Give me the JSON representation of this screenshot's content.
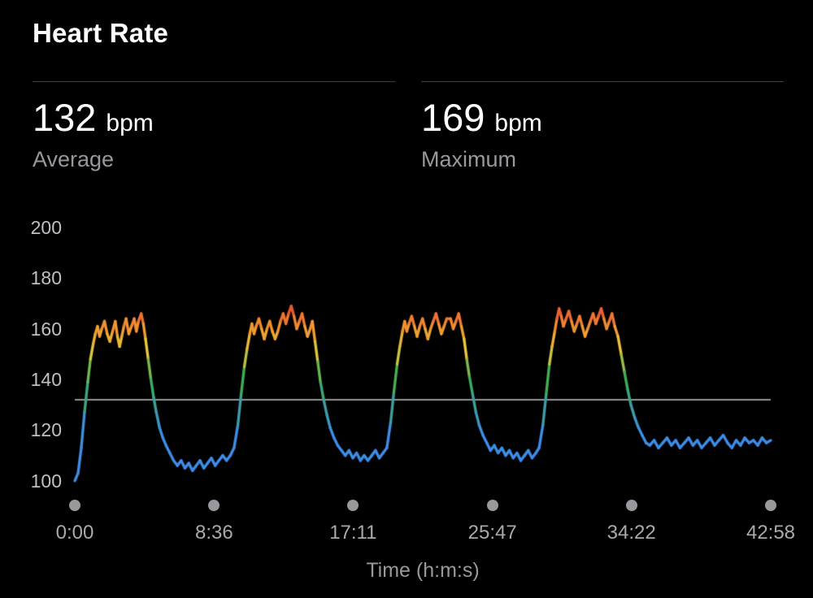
{
  "header": {
    "title": "Heart Rate"
  },
  "stats": [
    {
      "value": "132",
      "unit": "bpm",
      "label": "Average"
    },
    {
      "value": "169",
      "unit": "bpm",
      "label": "Maximum"
    }
  ],
  "colors": {
    "background": "#000000",
    "text_primary": "#ffffff",
    "text_secondary": "#98989d",
    "hairline": "#3f3f42",
    "average_line": "#c7c7cc",
    "tick_dot": "#98989d"
  },
  "chart_data": {
    "type": "line",
    "title": "Heart Rate",
    "xlabel": "Time (h:m:s)",
    "ylabel": "bpm",
    "ylim": [
      95,
      205
    ],
    "grid": false,
    "y_ticks": [
      200,
      180,
      160,
      140,
      120,
      100
    ],
    "x_ticks": [
      {
        "t": 0,
        "label": "0:00"
      },
      {
        "t": 516,
        "label": "8:36"
      },
      {
        "t": 1031,
        "label": "17:11"
      },
      {
        "t": 1547,
        "label": "25:47"
      },
      {
        "t": 2062,
        "label": "34:22"
      },
      {
        "t": 2578,
        "label": "42:58"
      }
    ],
    "duration_s": 2578,
    "average_bpm": 132,
    "max_bpm": 169,
    "color_stops": [
      [
        118,
        "#3e8de8"
      ],
      [
        140,
        "#3faf54"
      ],
      [
        152,
        "#e8c93e"
      ],
      [
        161,
        "#f2922e"
      ],
      [
        168,
        "#e94f35"
      ]
    ],
    "series": [
      {
        "name": "heart_rate_bpm",
        "points": [
          [
            0,
            100
          ],
          [
            12,
            103
          ],
          [
            24,
            113
          ],
          [
            36,
            127
          ],
          [
            48,
            139
          ],
          [
            58,
            148
          ],
          [
            68,
            154
          ],
          [
            76,
            158
          ],
          [
            84,
            161
          ],
          [
            92,
            157
          ],
          [
            100,
            160
          ],
          [
            110,
            163
          ],
          [
            120,
            158
          ],
          [
            130,
            155
          ],
          [
            140,
            159
          ],
          [
            150,
            163
          ],
          [
            158,
            157
          ],
          [
            166,
            153
          ],
          [
            174,
            157
          ],
          [
            182,
            161
          ],
          [
            190,
            164
          ],
          [
            200,
            158
          ],
          [
            210,
            161
          ],
          [
            220,
            164
          ],
          [
            228,
            159
          ],
          [
            236,
            163
          ],
          [
            246,
            166
          ],
          [
            254,
            162
          ],
          [
            262,
            156
          ],
          [
            272,
            148
          ],
          [
            282,
            140
          ],
          [
            292,
            133
          ],
          [
            302,
            127
          ],
          [
            314,
            121
          ],
          [
            326,
            117
          ],
          [
            338,
            114
          ],
          [
            352,
            111
          ],
          [
            366,
            108
          ],
          [
            380,
            106
          ],
          [
            394,
            108
          ],
          [
            408,
            105
          ],
          [
            422,
            107
          ],
          [
            436,
            104
          ],
          [
            450,
            106
          ],
          [
            464,
            108
          ],
          [
            478,
            105
          ],
          [
            492,
            107
          ],
          [
            506,
            109
          ],
          [
            520,
            106
          ],
          [
            534,
            108
          ],
          [
            548,
            110
          ],
          [
            562,
            108
          ],
          [
            576,
            110
          ],
          [
            590,
            113
          ],
          [
            604,
            122
          ],
          [
            616,
            134
          ],
          [
            628,
            145
          ],
          [
            638,
            152
          ],
          [
            648,
            158
          ],
          [
            656,
            162
          ],
          [
            664,
            158
          ],
          [
            672,
            161
          ],
          [
            682,
            164
          ],
          [
            692,
            160
          ],
          [
            702,
            156
          ],
          [
            712,
            160
          ],
          [
            722,
            163
          ],
          [
            732,
            159
          ],
          [
            742,
            156
          ],
          [
            752,
            159
          ],
          [
            762,
            163
          ],
          [
            772,
            166
          ],
          [
            782,
            162
          ],
          [
            792,
            166
          ],
          [
            802,
            169
          ],
          [
            812,
            165
          ],
          [
            822,
            160
          ],
          [
            832,
            163
          ],
          [
            842,
            166
          ],
          [
            852,
            161
          ],
          [
            862,
            157
          ],
          [
            872,
            160
          ],
          [
            880,
            163
          ],
          [
            890,
            155
          ],
          [
            900,
            147
          ],
          [
            910,
            139
          ],
          [
            922,
            132
          ],
          [
            934,
            126
          ],
          [
            946,
            121
          ],
          [
            960,
            117
          ],
          [
            974,
            114
          ],
          [
            988,
            112
          ],
          [
            1002,
            110
          ],
          [
            1016,
            112
          ],
          [
            1030,
            109
          ],
          [
            1044,
            111
          ],
          [
            1058,
            108
          ],
          [
            1072,
            110
          ],
          [
            1086,
            108
          ],
          [
            1100,
            110
          ],
          [
            1114,
            112
          ],
          [
            1128,
            109
          ],
          [
            1142,
            111
          ],
          [
            1156,
            113
          ],
          [
            1170,
            123
          ],
          [
            1182,
            135
          ],
          [
            1194,
            146
          ],
          [
            1204,
            153
          ],
          [
            1214,
            159
          ],
          [
            1222,
            163
          ],
          [
            1230,
            159
          ],
          [
            1238,
            162
          ],
          [
            1248,
            165
          ],
          [
            1258,
            161
          ],
          [
            1268,
            157
          ],
          [
            1278,
            161
          ],
          [
            1288,
            164
          ],
          [
            1298,
            160
          ],
          [
            1308,
            156
          ],
          [
            1318,
            160
          ],
          [
            1328,
            163
          ],
          [
            1338,
            166
          ],
          [
            1348,
            162
          ],
          [
            1358,
            158
          ],
          [
            1368,
            161
          ],
          [
            1378,
            164
          ],
          [
            1392,
            164
          ],
          [
            1402,
            160
          ],
          [
            1412,
            163
          ],
          [
            1422,
            166
          ],
          [
            1432,
            161
          ],
          [
            1442,
            156
          ],
          [
            1452,
            148
          ],
          [
            1462,
            141
          ],
          [
            1474,
            134
          ],
          [
            1486,
            127
          ],
          [
            1498,
            122
          ],
          [
            1512,
            118
          ],
          [
            1526,
            115
          ],
          [
            1540,
            112
          ],
          [
            1554,
            114
          ],
          [
            1568,
            111
          ],
          [
            1582,
            113
          ],
          [
            1596,
            110
          ],
          [
            1610,
            112
          ],
          [
            1624,
            109
          ],
          [
            1638,
            111
          ],
          [
            1652,
            108
          ],
          [
            1666,
            110
          ],
          [
            1680,
            112
          ],
          [
            1694,
            109
          ],
          [
            1708,
            111
          ],
          [
            1720,
            113
          ],
          [
            1734,
            122
          ],
          [
            1746,
            134
          ],
          [
            1758,
            146
          ],
          [
            1768,
            153
          ],
          [
            1778,
            159
          ],
          [
            1786,
            164
          ],
          [
            1794,
            168
          ],
          [
            1802,
            165
          ],
          [
            1810,
            161
          ],
          [
            1820,
            164
          ],
          [
            1830,
            167
          ],
          [
            1840,
            163
          ],
          [
            1850,
            159
          ],
          [
            1860,
            162
          ],
          [
            1870,
            165
          ],
          [
            1880,
            161
          ],
          [
            1890,
            157
          ],
          [
            1900,
            160
          ],
          [
            1910,
            163
          ],
          [
            1920,
            166
          ],
          [
            1930,
            162
          ],
          [
            1940,
            165
          ],
          [
            1950,
            168
          ],
          [
            1960,
            164
          ],
          [
            1970,
            160
          ],
          [
            1980,
            163
          ],
          [
            1990,
            166
          ],
          [
            2000,
            161
          ],
          [
            2012,
            157
          ],
          [
            2024,
            150
          ],
          [
            2036,
            143
          ],
          [
            2048,
            136
          ],
          [
            2060,
            130
          ],
          [
            2074,
            125
          ],
          [
            2088,
            121
          ],
          [
            2102,
            118
          ],
          [
            2116,
            115
          ],
          [
            2130,
            114
          ],
          [
            2146,
            116
          ],
          [
            2162,
            113
          ],
          [
            2178,
            115
          ],
          [
            2194,
            117
          ],
          [
            2210,
            114
          ],
          [
            2226,
            116
          ],
          [
            2242,
            113
          ],
          [
            2258,
            115
          ],
          [
            2274,
            117
          ],
          [
            2290,
            114
          ],
          [
            2306,
            116
          ],
          [
            2322,
            113
          ],
          [
            2338,
            115
          ],
          [
            2354,
            117
          ],
          [
            2370,
            114
          ],
          [
            2386,
            116
          ],
          [
            2402,
            118
          ],
          [
            2418,
            115
          ],
          [
            2434,
            113
          ],
          [
            2450,
            116
          ],
          [
            2466,
            114
          ],
          [
            2482,
            117
          ],
          [
            2498,
            115
          ],
          [
            2514,
            116
          ],
          [
            2530,
            114
          ],
          [
            2546,
            117
          ],
          [
            2562,
            115
          ],
          [
            2578,
            116
          ]
        ]
      }
    ]
  }
}
